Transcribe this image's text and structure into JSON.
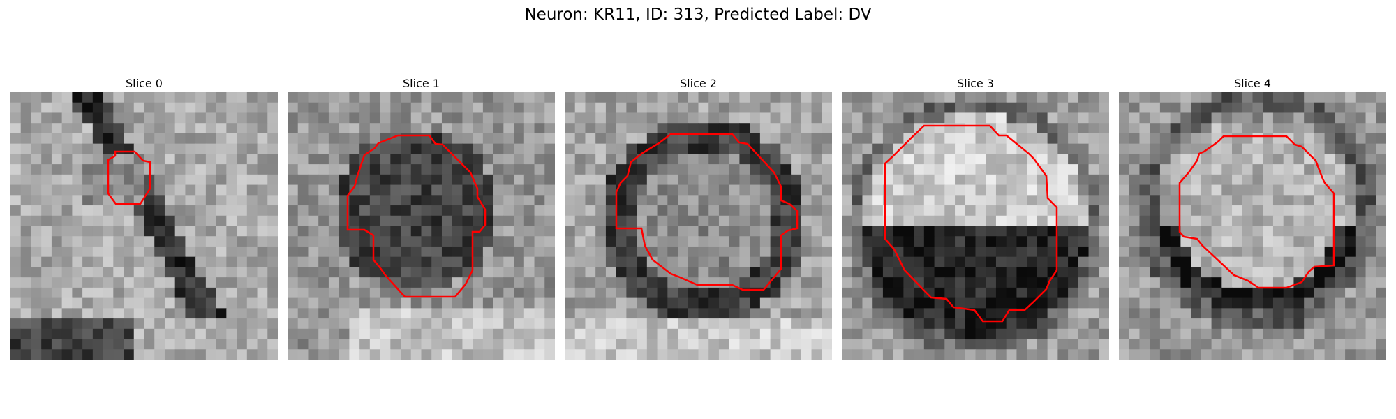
{
  "figure": {
    "title": "Neuron: KR11, ID: 313, Predicted Label: DV"
  },
  "panels": [
    {
      "title": "Slice 0",
      "outline_color": "#ff0000",
      "seed": 11
    },
    {
      "title": "Slice 1",
      "outline_color": "#ff0000",
      "seed": 23
    },
    {
      "title": "Slice 2",
      "outline_color": "#ff0000",
      "seed": 37
    },
    {
      "title": "Slice 3",
      "outline_color": "#ff0000",
      "seed": 53
    },
    {
      "title": "Slice 4",
      "outline_color": "#ff0000",
      "seed": 71
    }
  ]
}
